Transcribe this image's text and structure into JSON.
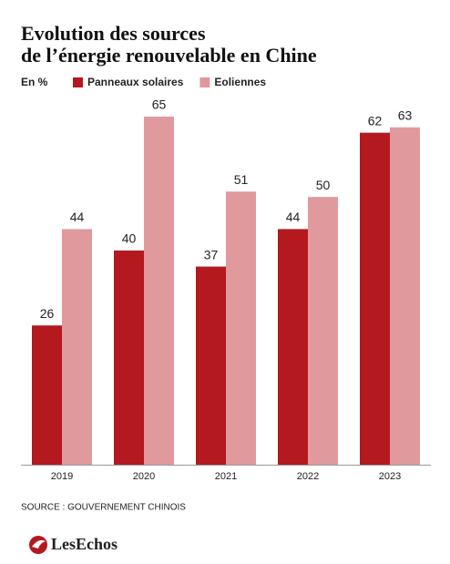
{
  "chart_data": {
    "type": "bar",
    "title_line1": "Evolution des sources",
    "title_line2": "de l’énergie renouvelable en Chine",
    "unit_label": "En %",
    "categories": [
      "2019",
      "2020",
      "2021",
      "2022",
      "2023"
    ],
    "series": [
      {
        "name": "Panneaux solaires",
        "color": "#b3191f",
        "values": [
          26,
          40,
          37,
          44,
          62
        ]
      },
      {
        "name": "Eoliennes",
        "color": "#e0999d",
        "values": [
          44,
          65,
          51,
          50,
          63
        ]
      }
    ],
    "source": "SOURCE : GOUVERNEMENT CHINOIS",
    "brand": "LesEchos"
  }
}
